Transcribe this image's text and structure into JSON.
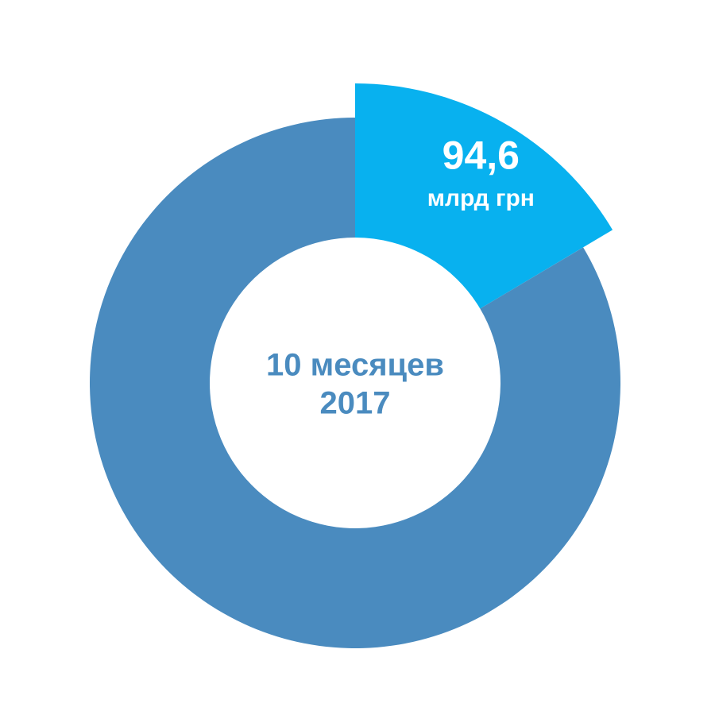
{
  "chart_data": {
    "type": "donut",
    "values": [
      94.6,
      480
    ],
    "value_labels": [
      "94,6",
      null
    ],
    "unit_label": "млрд грн",
    "colors": [
      "#08b1ef",
      "#4a8bbf"
    ],
    "highlight": 0,
    "center_text": [
      "10 месяцев",
      "2017"
    ]
  }
}
